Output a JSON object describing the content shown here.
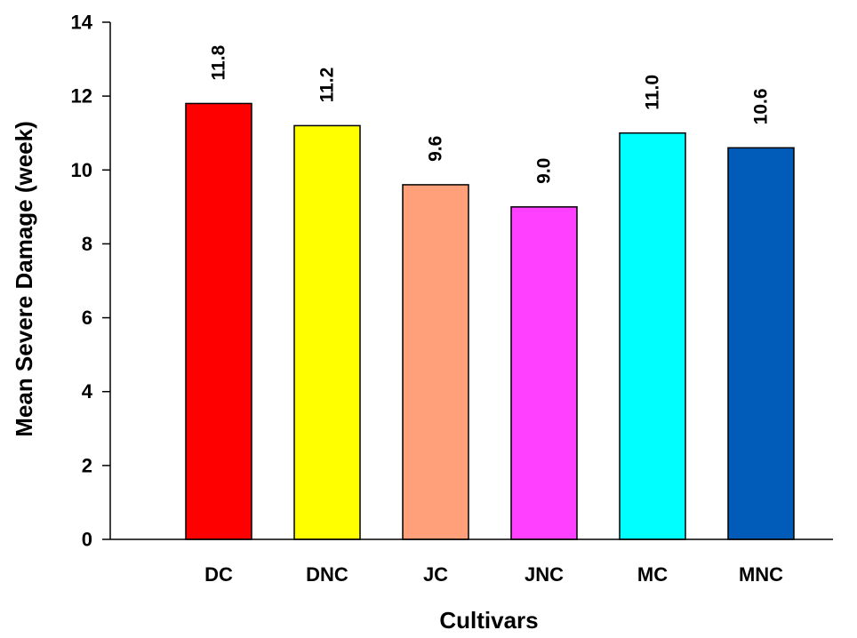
{
  "chart_data": {
    "type": "bar",
    "title": "",
    "xlabel": "Cultivars",
    "ylabel": "Mean Severe Damage (week)",
    "ylim": [
      0,
      14
    ],
    "yticks": [
      0,
      2,
      4,
      6,
      8,
      10,
      12,
      14
    ],
    "ytick_labels": [
      "0",
      "2",
      "4",
      "6",
      "8",
      "10",
      "12",
      "14"
    ],
    "categories": [
      "DC",
      "DNC",
      "JC",
      "JNC",
      "MC",
      "MNC"
    ],
    "values": [
      11.8,
      11.2,
      9.6,
      9.0,
      11.0,
      10.6
    ],
    "value_labels": [
      "11.8",
      "11.2",
      "9.6",
      "9.0",
      "11.0",
      "10.6"
    ],
    "colors": [
      "#ff0000",
      "#ffff00",
      "#ffa07a",
      "#ff40ff",
      "#00ffff",
      "#005cb8"
    ],
    "grid": false,
    "legend": "none"
  }
}
